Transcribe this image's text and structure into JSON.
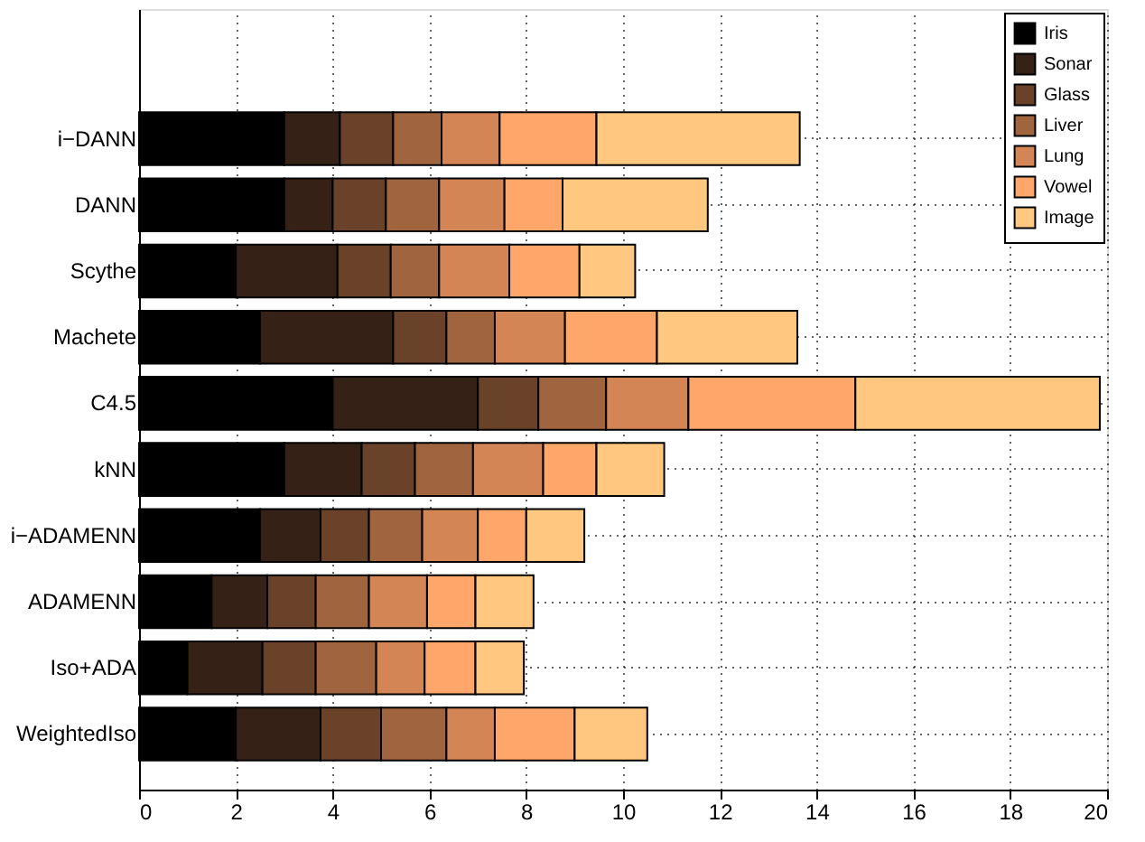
{
  "chart_data": {
    "type": "bar",
    "orientation": "horizontal",
    "stacked": true,
    "categories": [
      "i−DANN",
      "DANN",
      "Scythe",
      "Machete",
      "C4.5",
      "kNN",
      "i−ADAMENN",
      "ADAMENN",
      "Iso+ADA",
      "WeightedIso"
    ],
    "series": [
      {
        "name": "Iris",
        "color": "#000000",
        "values": [
          3.0,
          3.0,
          2.0,
          2.5,
          4.0,
          3.0,
          2.5,
          1.5,
          1.0,
          2.0
        ]
      },
      {
        "name": "Sonar",
        "color": "#352115",
        "values": [
          1.15,
          1.0,
          2.1,
          2.75,
          3.0,
          1.6,
          1.25,
          1.15,
          1.55,
          1.75
        ]
      },
      {
        "name": "Glass",
        "color": "#6a422a",
        "values": [
          1.1,
          1.1,
          1.1,
          1.1,
          1.25,
          1.1,
          1.0,
          1.0,
          1.1,
          1.25
        ]
      },
      {
        "name": "Liver",
        "color": "#a0643f",
        "values": [
          1.0,
          1.1,
          1.0,
          1.0,
          1.4,
          1.2,
          1.1,
          1.1,
          1.25,
          1.35
        ]
      },
      {
        "name": "Lung",
        "color": "#d48555",
        "values": [
          1.2,
          1.35,
          1.45,
          1.45,
          1.7,
          1.45,
          1.15,
          1.2,
          1.0,
          1.0
        ]
      },
      {
        "name": "Vowel",
        "color": "#ffa66a",
        "values": [
          2.0,
          1.2,
          1.45,
          1.9,
          3.45,
          1.1,
          1.0,
          1.0,
          1.05,
          1.65
        ]
      },
      {
        "name": "Image",
        "color": "#ffc77f",
        "values": [
          4.2,
          3.0,
          1.15,
          2.9,
          5.05,
          1.4,
          1.2,
          1.2,
          1.0,
          1.5
        ]
      }
    ],
    "xlim": [
      0,
      20
    ],
    "xticks": [
      0,
      2,
      4,
      6,
      8,
      10,
      12,
      14,
      16,
      18,
      20
    ],
    "grid": true,
    "legend": "top right"
  }
}
